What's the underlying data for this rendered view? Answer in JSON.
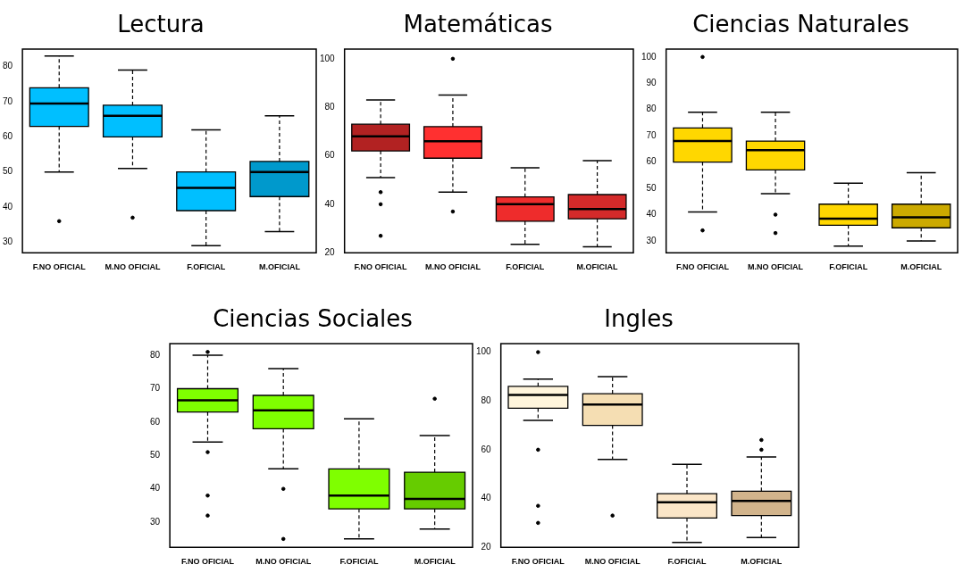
{
  "chart_data": [
    {
      "type": "box",
      "title": "Lectura",
      "categories": [
        "F.NO OFICIAL",
        "M.NO OFICIAL",
        "F.OFICIAL",
        "M.OFICIAL"
      ],
      "colors": [
        "#00bfff",
        "#00bfff",
        "#00bfff",
        "#0099cc"
      ],
      "ylim": [
        27,
        85
      ],
      "yticks": [
        30,
        40,
        50,
        60,
        70,
        80
      ],
      "grid": false,
      "boxes": [
        {
          "low": 50,
          "q1": 63,
          "median": 69.5,
          "q3": 74,
          "high": 83,
          "outliers": [
            36
          ]
        },
        {
          "low": 51,
          "q1": 60,
          "median": 66,
          "q3": 69,
          "high": 79,
          "outliers": [
            37
          ]
        },
        {
          "low": 29,
          "q1": 39,
          "median": 45.5,
          "q3": 50,
          "high": 62
        },
        {
          "low": 33,
          "q1": 43,
          "median": 50,
          "q3": 53,
          "high": 66
        }
      ]
    },
    {
      "type": "box",
      "title": "Matemáticas",
      "categories": [
        "F.NO OFICIAL",
        "M.NO OFICIAL",
        "F.OFICIAL",
        "M.OFICIAL"
      ],
      "colors": [
        "#b22222",
        "#ff3030",
        "#ee2c2c",
        "#d42a2a"
      ],
      "ylim": [
        20,
        104
      ],
      "yticks": [
        20,
        40,
        60,
        80,
        100
      ],
      "grid": false,
      "boxes": [
        {
          "low": 51,
          "q1": 62,
          "median": 68,
          "q3": 73,
          "high": 83,
          "outliers": [
            45,
            40,
            27
          ]
        },
        {
          "low": 45,
          "q1": 59,
          "median": 66,
          "q3": 72,
          "high": 85,
          "outliers": [
            100,
            37
          ]
        },
        {
          "low": 23.5,
          "q1": 33,
          "median": 40,
          "q3": 43,
          "high": 55
        },
        {
          "low": 22.5,
          "q1": 34,
          "median": 38,
          "q3": 44,
          "high": 58
        }
      ]
    },
    {
      "type": "box",
      "title": "Ciencias Naturales",
      "categories": [
        "F.NO OFICIAL",
        "M.NO OFICIAL",
        "F.OFICIAL",
        "M.OFICIAL"
      ],
      "colors": [
        "#ffd700",
        "#ffd700",
        "#ffd700",
        "#ccaa00"
      ],
      "ylim": [
        25.5,
        103
      ],
      "yticks": [
        30,
        40,
        50,
        60,
        70,
        80,
        90,
        100
      ],
      "grid": false,
      "boxes": [
        {
          "low": 41,
          "q1": 60,
          "median": 68,
          "q3": 73,
          "high": 79,
          "outliers": [
            100,
            34
          ]
        },
        {
          "low": 48,
          "q1": 57,
          "median": 64.5,
          "q3": 68,
          "high": 79,
          "outliers": [
            40,
            33
          ]
        },
        {
          "low": 28,
          "q1": 36,
          "median": 38.5,
          "q3": 44,
          "high": 52
        },
        {
          "low": 30,
          "q1": 35,
          "median": 39,
          "q3": 44,
          "high": 56
        }
      ]
    },
    {
      "type": "box",
      "title": "Ciencias Sociales",
      "categories": [
        "F.NO OFICIAL",
        "M.NO OFICIAL",
        "F.OFICIAL",
        "M.OFICIAL"
      ],
      "colors": [
        "#7fff00",
        "#7fff00",
        "#7fff00",
        "#66cc00"
      ],
      "ylim": [
        22.5,
        83.5
      ],
      "yticks": [
        30,
        40,
        50,
        60,
        70,
        80
      ],
      "grid": false,
      "boxes": [
        {
          "low": 54,
          "q1": 63,
          "median": 66.5,
          "q3": 70,
          "high": 80,
          "outliers": [
            81,
            51,
            38,
            32
          ]
        },
        {
          "low": 46,
          "q1": 58,
          "median": 63.5,
          "q3": 68,
          "high": 76,
          "outliers": [
            40,
            25
          ]
        },
        {
          "low": 25,
          "q1": 34,
          "median": 38,
          "q3": 46,
          "high": 61
        },
        {
          "low": 28,
          "q1": 34,
          "median": 37,
          "q3": 45,
          "high": 56,
          "outliers": [
            67
          ]
        }
      ]
    },
    {
      "type": "box",
      "title": "Ingles",
      "categories": [
        "F.NO OFICIAL",
        "M.NO OFICIAL",
        "F.OFICIAL",
        "M.OFICIAL"
      ],
      "colors": [
        "#fff5dc",
        "#f5deb3",
        "#fbe6c8",
        "#d2b48c"
      ],
      "ylim": [
        20,
        103.5
      ],
      "yticks": [
        20,
        40,
        60,
        80,
        100
      ],
      "grid": false,
      "boxes": [
        {
          "low": 72,
          "q1": 77,
          "median": 82.5,
          "q3": 86,
          "high": 89,
          "outliers": [
            100,
            60,
            37,
            30
          ]
        },
        {
          "low": 56,
          "q1": 70,
          "median": 78.5,
          "q3": 83,
          "high": 90,
          "outliers": [
            33
          ]
        },
        {
          "low": 22,
          "q1": 32,
          "median": 38.5,
          "q3": 42,
          "high": 54
        },
        {
          "low": 24,
          "q1": 33,
          "median": 39,
          "q3": 43,
          "high": 57,
          "outliers": [
            64,
            60
          ]
        }
      ]
    }
  ]
}
